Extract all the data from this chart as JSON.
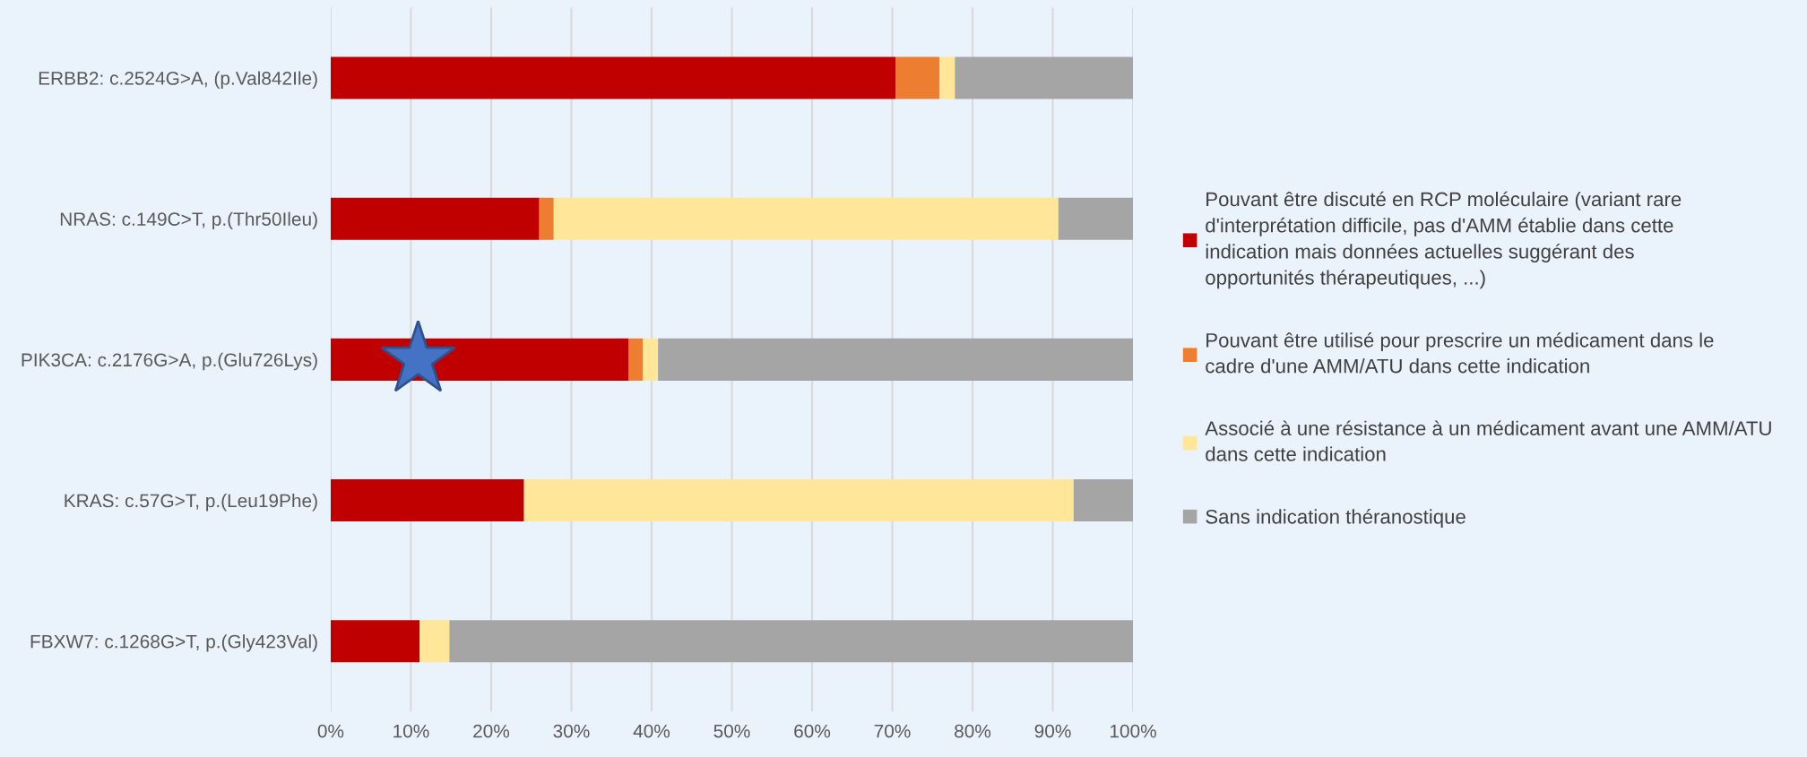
{
  "chart_data": {
    "type": "bar",
    "orientation": "horizontal",
    "stacked": true,
    "categories": [
      "ERBB2: c.2524G>A, (p.Val842Ile)",
      "NRAS: c.149C>T, p.(Thr50Ileu)",
      "PIK3CA: c.2176G>A, p.(Glu726Lys)",
      "KRAS: c.57G>T, p.(Leu19Phe)",
      "FBXW7: c.1268G>T, p.(Gly423Val)"
    ],
    "series": [
      {
        "name": "Pouvant être discuté en RCP moléculaire (variant rare d'interprétation difficile, pas d'AMM établie dans cette indication mais données actuelles suggérant des opportunités thérapeutiques, ...)",
        "color": "#c00000",
        "values": [
          70.4,
          26.0,
          37.1,
          24.1,
          11.1
        ]
      },
      {
        "name": "Pouvant être utilisé pour prescrire un médicament dans le cadre d'une AMM/ATU dans cette indication",
        "color": "#ed7d31",
        "values": [
          5.5,
          1.8,
          1.8,
          0,
          0
        ]
      },
      {
        "name": "Associé à une résistance à un médicament avant une AMM/ATU dans cette indication",
        "color": "#ffe699",
        "values": [
          1.9,
          62.9,
          1.9,
          68.5,
          3.7
        ]
      },
      {
        "name": "Sans indication théranostique",
        "color": "#a5a5a5",
        "values": [
          22.2,
          9.3,
          59.2,
          7.4,
          85.2
        ]
      }
    ],
    "xlim": [
      0,
      100
    ],
    "xticks": [
      {
        "value": 0,
        "label": "0%"
      },
      {
        "value": 10,
        "label": "10%"
      },
      {
        "value": 20,
        "label": "20%"
      },
      {
        "value": 30,
        "label": "30%"
      },
      {
        "value": 40,
        "label": "40%"
      },
      {
        "value": 50,
        "label": "50%"
      },
      {
        "value": 60,
        "label": "60%"
      },
      {
        "value": 70,
        "label": "70%"
      },
      {
        "value": 80,
        "label": "80%"
      },
      {
        "value": 90,
        "label": "90%"
      },
      {
        "value": 100,
        "label": "100%"
      }
    ],
    "grid": "x",
    "legend": "right"
  }
}
